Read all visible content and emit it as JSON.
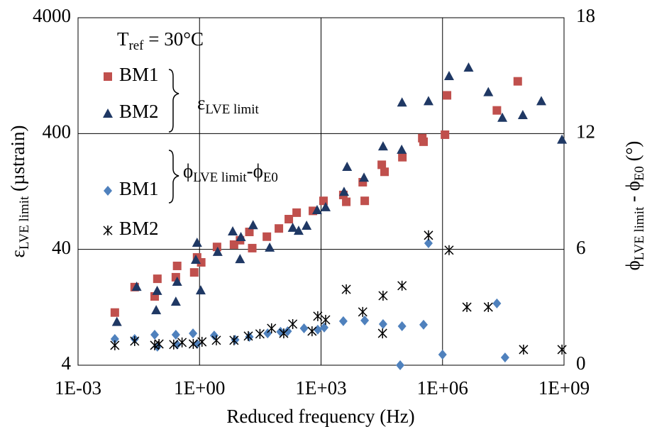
{
  "chart_data": {
    "type": "scatter",
    "x_label": "Reduced frequency (Hz)",
    "y_label": [
      "ε",
      "LVE limit",
      " (µstrain)"
    ],
    "y2_label": [
      "ϕ",
      "LVE limit",
      " - ϕ",
      "E0",
      " (°)"
    ],
    "reference": [
      "T",
      "ref",
      " = 30°C"
    ],
    "groups": [
      [
        "ε",
        "LVE limit"
      ],
      [
        "ϕ",
        "LVE limit",
        "-ϕ",
        "E0"
      ]
    ],
    "xscale": "log",
    "yscale": "log",
    "grid": true,
    "xlim": [
      0.001,
      1000000000
    ],
    "xticks": [
      {
        "value": 0.001,
        "label": "1E-03"
      },
      {
        "value": 1,
        "label": "1E+00"
      },
      {
        "value": 1000,
        "label": "1E+03"
      },
      {
        "value": 1000000,
        "label": "1E+06"
      },
      {
        "value": 1000000000,
        "label": "1E+09"
      }
    ],
    "ylim": [
      4,
      4000
    ],
    "yticks": [
      4,
      40,
      400,
      4000
    ],
    "y2lim": [
      0,
      18
    ],
    "y2ticks": [
      0,
      6,
      12,
      18
    ],
    "series": [
      {
        "name": "BM1",
        "color": "#c0504d",
        "marker": "square",
        "axis": "y",
        "x": [
          0.0081,
          0.025,
          0.078,
          0.091,
          0.26,
          0.28,
          0.74,
          0.87,
          1.1,
          2.7,
          7.1,
          10,
          17,
          20,
          46,
          91,
          160,
          250,
          630,
          1150,
          3550,
          4200,
          10700,
          12000,
          31600,
          37000,
          102000,
          316000,
          340000,
          1150000,
          1290000,
          22000000,
          72000000
        ],
        "values": [
          11.4,
          18.9,
          15.7,
          22.3,
          23.0,
          28.8,
          25.3,
          34.1,
          30.9,
          42,
          44,
          48,
          56.6,
          41,
          51.5,
          60.6,
          73,
          83,
          86,
          105,
          118,
          103,
          152,
          105,
          215,
          187,
          250,
          365,
          340,
          391,
          855,
          634,
          1130
        ]
      },
      {
        "name": "BM2",
        "color": "#1f3864",
        "marker": "triangle",
        "axis": "y",
        "x": [
          0.0091,
          0.028,
          0.085,
          0.09,
          0.26,
          0.28,
          0.81,
          1.07,
          0.87,
          2.8,
          6.6,
          10,
          10.5,
          21,
          54,
          200,
          280,
          440,
          800,
          1300,
          3700,
          4400,
          11500,
          34000,
          98000,
          100000,
          450000,
          1450000,
          4400000,
          13500000,
          30000000,
          96000000,
          275000000,
          890000000
        ],
        "values": [
          9.5,
          19.1,
          12.0,
          17.6,
          14.2,
          21.1,
          32.7,
          17.8,
          45.8,
          38.2,
          57.4,
          33.1,
          51.3,
          65,
          41.6,
          61.7,
          58.2,
          64.3,
          87.6,
          92.9,
          126,
          207,
          167,
          311,
          291,
          745,
          764,
          1260,
          1490,
          915,
          550,
          580,
          764,
          356
        ]
      },
      {
        "name": "BM1",
        "color": "#4f81bd",
        "marker": "diamond",
        "axis": "y2",
        "x": [
          0.0081,
          0.025,
          0.078,
          0.091,
          0.26,
          0.28,
          0.69,
          0.87,
          2.3,
          7.6,
          17,
          48,
          100,
          150,
          380,
          830,
          1200,
          3550,
          12000,
          34000,
          90000,
          100000,
          340000,
          450000,
          1000000,
          22000000,
          35000000
        ],
        "values": [
          1.36,
          1.36,
          1.58,
          0.96,
          1.58,
          1.07,
          1.65,
          1.1,
          1.54,
          1.32,
          1.47,
          1.65,
          1.73,
          1.76,
          1.91,
          1.84,
          1.95,
          2.28,
          2.32,
          2.13,
          0,
          2.02,
          2.1,
          6.32,
          0.55,
          3.2,
          0.4
        ]
      },
      {
        "name": "BM2",
        "color": "#000000",
        "marker": "asterisk",
        "axis": "y2",
        "x": [
          0.0081,
          0.025,
          0.078,
          0.1,
          0.23,
          0.37,
          0.7,
          1.15,
          2.6,
          7.1,
          16,
          31,
          60,
          120,
          200,
          600,
          830,
          1300,
          4200,
          10700,
          34000,
          33000,
          100000,
          450000,
          1450000,
          4000000,
          13500000,
          100000000,
          890000000
        ],
        "values": [
          1.03,
          1.25,
          1.03,
          1.1,
          1.07,
          1.18,
          1.1,
          1.21,
          1.29,
          1.29,
          1.51,
          1.62,
          1.91,
          1.65,
          2.13,
          1.76,
          2.54,
          2.35,
          3.93,
          2.76,
          3.6,
          1.65,
          4.12,
          6.73,
          5.96,
          3.01,
          3.01,
          0.81,
          0.81
        ]
      }
    ]
  }
}
